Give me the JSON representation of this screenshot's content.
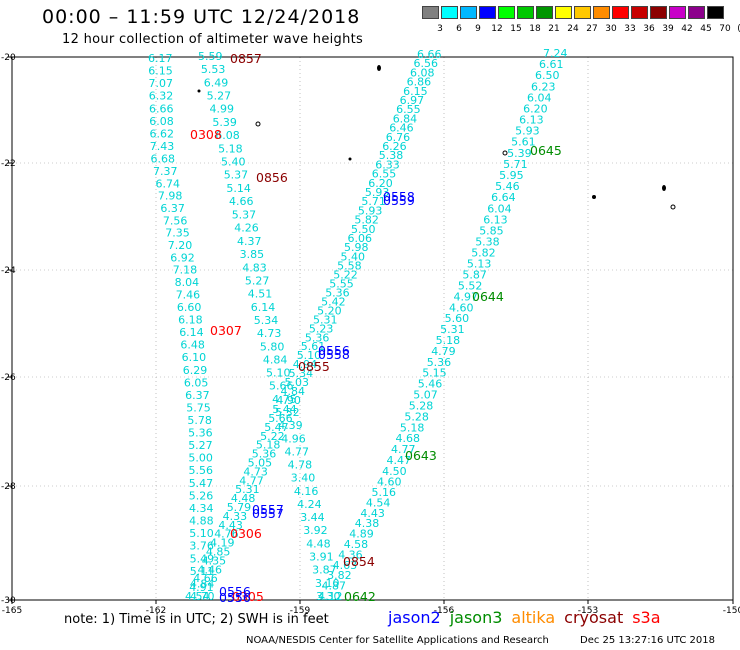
{
  "header": {
    "title": "00:00 – 11:59 UTC 12/24/2018",
    "subtitle": "12 hour collection of altimeter wave heights"
  },
  "color_scale": {
    "labels": [
      "3",
      "6",
      "9",
      "12",
      "15",
      "18",
      "21",
      "24",
      "27",
      "30",
      "33",
      "36",
      "39",
      "42",
      "45",
      "70",
      "(ft)"
    ],
    "colors": [
      "#808080",
      "#00ffff",
      "#00b8ff",
      "#0000ff",
      "#00ff00",
      "#00c800",
      "#009600",
      "#ffff00",
      "#ffc800",
      "#ff8c00",
      "#ff0000",
      "#c80000",
      "#8c0000",
      "#c800c8",
      "#8c008c",
      "#000000"
    ]
  },
  "axes": {
    "lon_ticks": [
      "-165",
      "-162",
      "-159",
      "-156",
      "-153",
      "-150"
    ],
    "lat_ticks": [
      "-20",
      "-22",
      "-24",
      "-26",
      "-28",
      "-30"
    ]
  },
  "tracks": {
    "a": [
      "6.17",
      "6.15",
      "7.07",
      "6.32",
      "6.66",
      "6.08",
      "6.62",
      "7.43",
      "6.68",
      "7.37",
      "6.74",
      "7.98",
      "6.37",
      "7.56",
      "7.35",
      "7.20",
      "6.92",
      "7.18",
      "8.04",
      "7.46",
      "6.60",
      "6.18",
      "6.14",
      "6.48",
      "6.10",
      "6.29",
      "6.05",
      "6.37",
      "5.75",
      "5.78",
      "5.36",
      "5.27",
      "5.00",
      "5.56",
      "5.47",
      "5.26",
      "4.34",
      "4.88",
      "5.10",
      "3.76",
      "5.49",
      "5.11",
      "4.84",
      "4.70"
    ],
    "b": [
      "5.59",
      "5.53",
      "6.49",
      "5.27",
      "4.99",
      "5.39",
      "6.08",
      "5.18",
      "5.40",
      "5.37",
      "5.14",
      "4.66",
      "5.37",
      "4.26",
      "4.37",
      "3.85",
      "4.83",
      "5.27",
      "4.51",
      "6.14",
      "5.34",
      "4.73",
      "5.80",
      "4.84",
      "5.10",
      "5.66",
      "4.75",
      "5.32",
      "4.39",
      "4.96",
      "4.77",
      "4.78",
      "3.40",
      "4.16",
      "4.24",
      "3.44",
      "3.92",
      "4.48",
      "3.91",
      "3.87",
      "3.10",
      "4.12"
    ],
    "c": [
      "6.66",
      "6.56",
      "6.08",
      "6.86",
      "6.15",
      "6.97",
      "6.55",
      "6.84",
      "6.46",
      "6.76",
      "6.26",
      "5.38",
      "6.33",
      "6.55",
      "6.20",
      "5.93",
      "5.71",
      "5.93",
      "5.82",
      "5.50",
      "6.06",
      "5.98",
      "5.40",
      "5.58",
      "5.22",
      "5.55",
      "5.36",
      "5.42",
      "5.20",
      "5.31",
      "5.23",
      "5.36",
      "5.61",
      "5.10",
      "4.94",
      "5.34",
      "5.03",
      "4.84",
      "4.90",
      "5.44",
      "5.66",
      "5.47",
      "5.22",
      "5.18",
      "5.36",
      "5.05",
      "4.73",
      "4.77",
      "5.31",
      "4.48",
      "5.79",
      "4.33",
      "4.43",
      "4.76",
      "4.19",
      "4.85",
      "4.35",
      "4.46",
      "4.66",
      "4.91",
      "4.54"
    ],
    "d": [
      "7.24",
      "6.61",
      "6.50",
      "6.23",
      "6.04",
      "6.20",
      "6.13",
      "5.93",
      "5.61",
      "5.39",
      "5.71",
      "5.95",
      "5.46",
      "6.64",
      "6.04",
      "6.13",
      "5.85",
      "5.38",
      "5.82",
      "5.13",
      "5.87",
      "5.52",
      "4.97",
      "4.60",
      "5.60",
      "5.31",
      "5.18",
      "4.79",
      "5.36",
      "5.15",
      "5.46",
      "5.07",
      "5.28",
      "5.28",
      "5.18",
      "4.68",
      "4.77",
      "4.47",
      "4.50",
      "4.60",
      "5.16",
      "4.54",
      "4.43",
      "4.38",
      "4.89",
      "4.58",
      "4.36",
      "4.63",
      "3.82",
      "4.87",
      "3.30"
    ]
  },
  "time_labels": [
    {
      "text": "0857",
      "sat": "cryosat"
    },
    {
      "text": "0308",
      "sat": "s3a"
    },
    {
      "text": "0856",
      "sat": "cryosat"
    },
    {
      "text": "0307",
      "sat": "s3a"
    },
    {
      "text": "0855",
      "sat": "cryosat"
    },
    {
      "text": "0306",
      "sat": "s3a"
    },
    {
      "text": "0854",
      "sat": "cryosat"
    },
    {
      "text": "0305",
      "sat": "s3a"
    },
    {
      "text": "0558",
      "sat": "jason2"
    },
    {
      "text": "0559",
      "sat": "jason2"
    },
    {
      "text": "0558",
      "sat": "jason2"
    },
    {
      "text": "0556",
      "sat": "jason2"
    },
    {
      "text": "0557",
      "sat": "jason2"
    },
    {
      "text": "0557",
      "sat": "jason2"
    },
    {
      "text": "0556",
      "sat": "jason2"
    },
    {
      "text": "0556",
      "sat": "jason2"
    },
    {
      "text": "0645",
      "sat": "jason3"
    },
    {
      "text": "0644",
      "sat": "jason3"
    },
    {
      "text": "0643",
      "sat": "jason3"
    },
    {
      "text": "0642",
      "sat": "jason3"
    }
  ],
  "sat_colors": {
    "jason2": "#0000ff",
    "jason3": "#008c00",
    "altika": "#ff8c00",
    "cryosat": "#8b0000",
    "s3a": "#ff0000"
  },
  "footer": {
    "note": "note: 1) Time is in UTC; 2) SWH is in feet",
    "satellites": [
      "jason2",
      "jason3",
      "altika",
      "cryosat",
      "s3a"
    ],
    "credit": "NOAA/NESDIS Center for Satellite Applications and Research",
    "timestamp": "Dec 25 13:27:16 UTC 2018"
  }
}
